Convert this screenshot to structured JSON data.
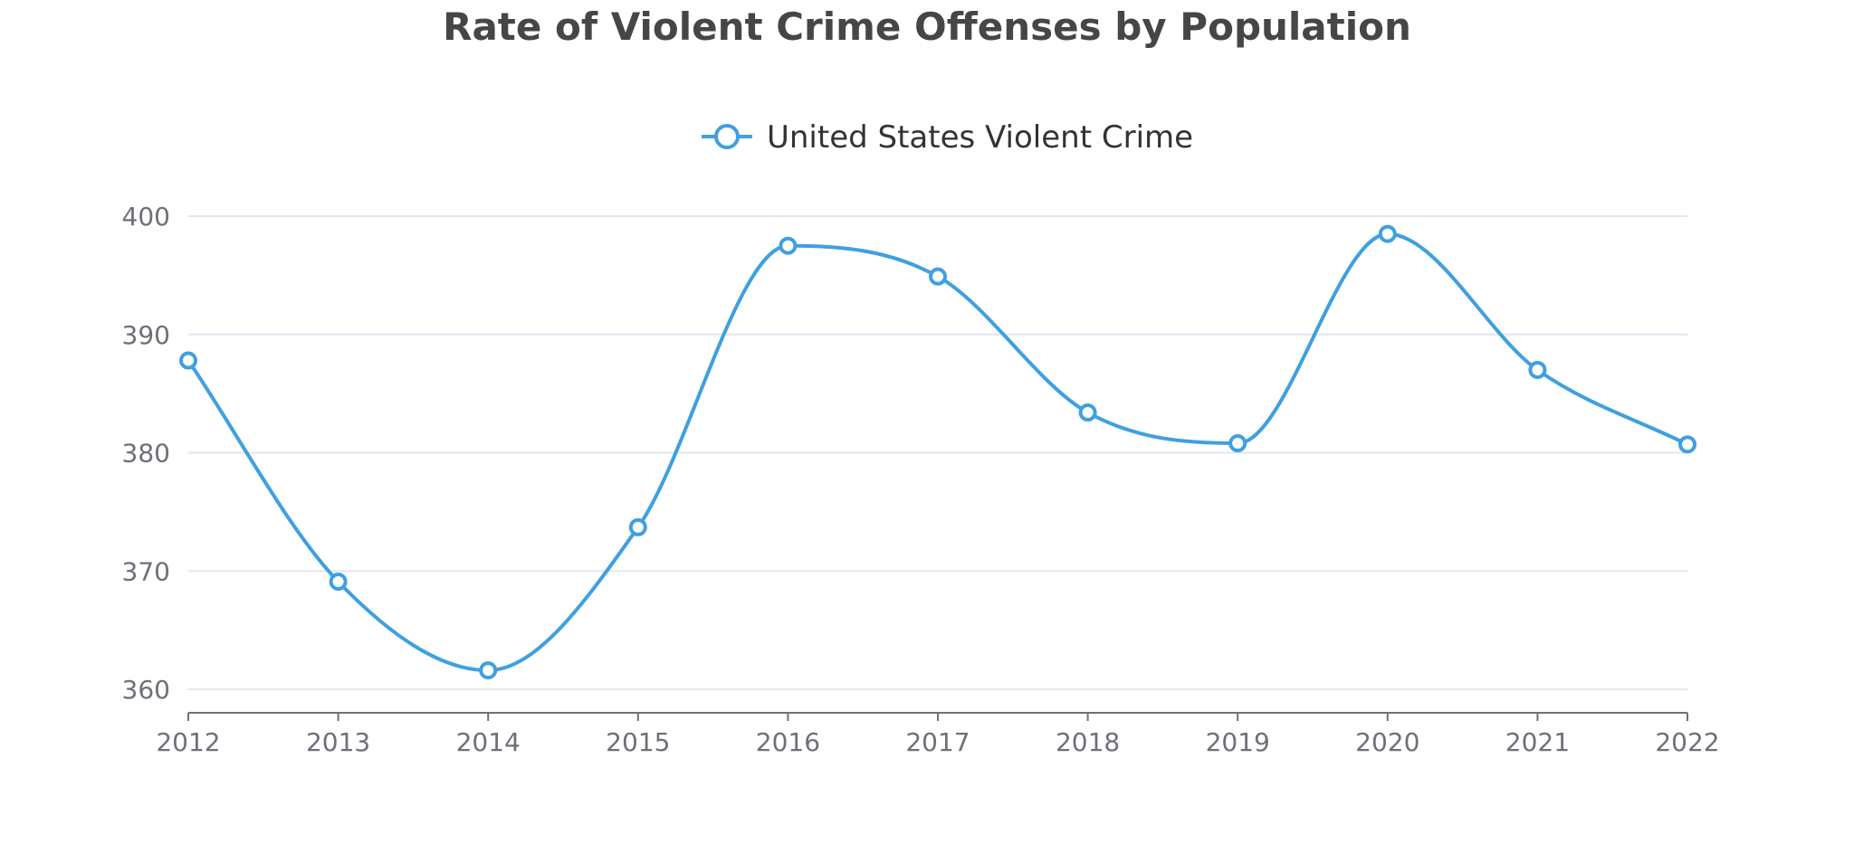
{
  "chart_data": {
    "type": "line",
    "title": "Rate of Violent Crime Offenses by Population",
    "xlabel": "",
    "ylabel": "",
    "categories": [
      "2012",
      "2013",
      "2014",
      "2015",
      "2016",
      "2017",
      "2018",
      "2019",
      "2020",
      "2021",
      "2022"
    ],
    "series": [
      {
        "name": "United States Violent Crime",
        "values": [
          387.8,
          369.1,
          361.6,
          373.7,
          397.5,
          394.9,
          383.4,
          380.8,
          398.5,
          387.0,
          380.7
        ],
        "color": "#3fa0e0",
        "smooth": true,
        "marker": "hollow-circle"
      }
    ],
    "ylim": [
      360,
      400
    ],
    "yticks": [
      "360",
      "370",
      "380",
      "390",
      "400"
    ],
    "grid": true,
    "legend": "top-center"
  }
}
